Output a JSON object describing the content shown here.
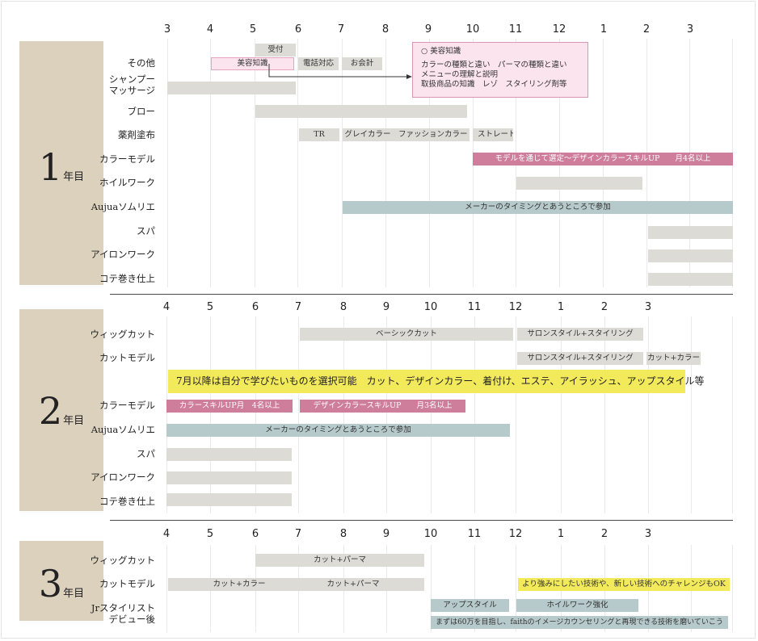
{
  "sections": [
    {
      "number": "1",
      "suffix": "年目",
      "months": [
        "3",
        "4",
        "5",
        "6",
        "7",
        "8",
        "9",
        "10",
        "11",
        "12",
        "1",
        "2",
        "3"
      ],
      "rows": [
        "その他",
        "シャンプー\nマッサージ",
        "ブロー",
        "薬剤塗布",
        "カラーモデル",
        "ホイルワーク",
        "Aujuaソムリエ",
        "スパ",
        "アイロンワーク",
        "コテ巻き仕上"
      ],
      "bars": [
        {
          "label": "受付",
          "style": "gray"
        },
        {
          "label": "美容知識",
          "style": "lightpink"
        },
        {
          "label": "電話対応",
          "style": "gray"
        },
        {
          "label": "お会計",
          "style": "gray"
        },
        {
          "label": "",
          "style": "gray"
        },
        {
          "label": "",
          "style": "gray"
        },
        {
          "label": "TR",
          "style": "gray"
        },
        {
          "label": "グレイカラー　ファッションカラー",
          "style": "gray"
        },
        {
          "label": "ストレート",
          "style": "gray"
        },
        {
          "label": "モデルを通じて選定～デザインカラースキルUP　　月4名以上",
          "style": "pink"
        },
        {
          "label": "",
          "style": "gray"
        },
        {
          "label": "メーカーのタイミングとあうところで参加",
          "style": "blue"
        },
        {
          "label": "",
          "style": "gray"
        },
        {
          "label": "",
          "style": "gray"
        },
        {
          "label": "",
          "style": "gray"
        }
      ],
      "note": {
        "title": "○ 美容知識",
        "lines": [
          "カラーの種類と違い　パーマの種類と違い",
          "メニューの理解と説明",
          "取扱商品の知識　レゾ　スタイリング剤等"
        ]
      }
    },
    {
      "number": "2",
      "suffix": "年目",
      "months": [
        "4",
        "5",
        "6",
        "7",
        "8",
        "9",
        "10",
        "11",
        "12",
        "1",
        "2",
        "3"
      ],
      "rows": [
        "ウィッグカット",
        "カットモデル",
        "カラーモデル",
        "Aujuaソムリエ",
        "スパ",
        "アイロンワーク",
        "コテ巻き仕上"
      ],
      "bars": [
        {
          "label": "ベーシックカット",
          "style": "gray"
        },
        {
          "label": "サロンスタイル+スタイリング",
          "style": "gray"
        },
        {
          "label": "サロンスタイル+スタイリング",
          "style": "gray"
        },
        {
          "label": "カット+カラー",
          "style": "gray"
        },
        {
          "label": "カラースキルUP月　4名以上",
          "style": "pink"
        },
        {
          "label": "デザインカラースキルUP　　月3名以上",
          "style": "pink"
        },
        {
          "label": "メーカーのタイミングとあうところで参加",
          "style": "blue"
        },
        {
          "label": "",
          "style": "gray"
        },
        {
          "label": "",
          "style": "gray"
        },
        {
          "label": "",
          "style": "gray"
        }
      ],
      "banner": "7月以降は自分で学びたいものを選択可能　カット、デザインカラー、着付け、エステ、アイラッシュ、アップスタイル等"
    },
    {
      "number": "3",
      "suffix": "年目",
      "months": [
        "4",
        "5",
        "6",
        "7",
        "8",
        "9",
        "10",
        "11",
        "12",
        "1",
        "2",
        "3"
      ],
      "rows": [
        "ウィッグカット",
        "カットモデル",
        "Jrスタイリスト\nデビュー後"
      ],
      "bars": [
        {
          "label": "カット+パーマ",
          "style": "gray"
        },
        {
          "label": "カット+カラー　　　　　　　　カット+パーマ",
          "style": "gray"
        },
        {
          "label": "より強みにしたい技術や、新しい技術へのチャレンジもOK",
          "style": "yellow"
        },
        {
          "label": "アップスタイル",
          "style": "blue"
        },
        {
          "label": "ホイルワーク強化",
          "style": "blue"
        },
        {
          "label": "まずは60万を目指し、faithのイメージカウンセリングと再現できる技術を磨いていこう",
          "style": "blue"
        }
      ]
    }
  ]
}
